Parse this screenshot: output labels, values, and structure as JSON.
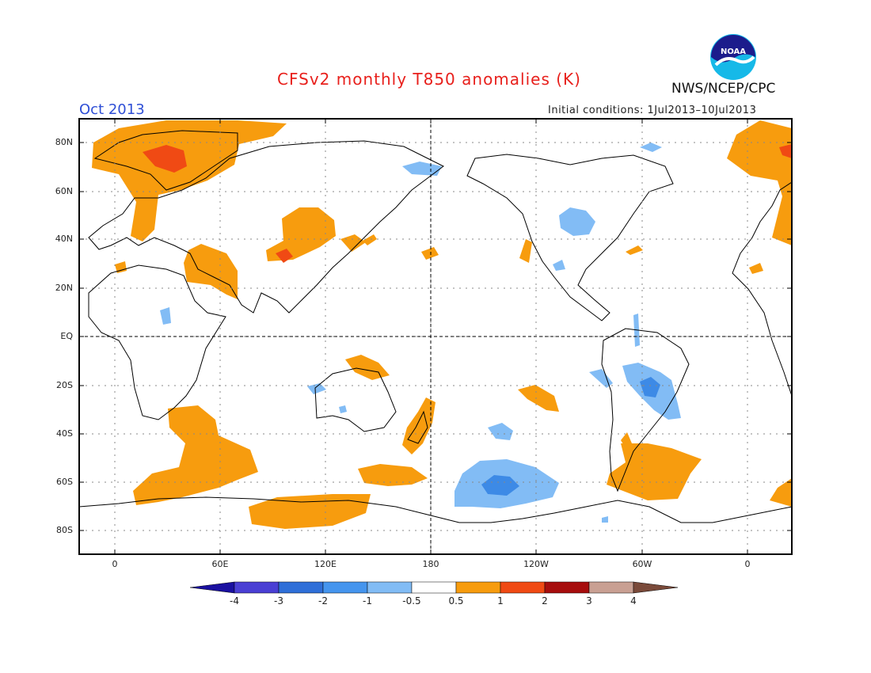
{
  "title": "CFSv2 monthly T850 anomalies (K)",
  "period": "Oct 2013",
  "initial_conditions": "Initial conditions: 1Jul2013–10Jul2013",
  "agency": "NWS/NCEP/CPC",
  "logo_text": "NOAA",
  "map": {
    "lat_ticks": [
      "80N",
      "60N",
      "40N",
      "20N",
      "EQ",
      "20S",
      "40S",
      "60S",
      "80S"
    ],
    "lon_ticks": [
      "0",
      "60E",
      "120E",
      "180",
      "120W",
      "60W",
      "0"
    ],
    "colors": {
      "land_outline": "#000000",
      "warm": "#f79c0e",
      "warm_strong": "#f04a14",
      "cool": "#82bcf5",
      "cool_strong": "#3d8ae6"
    }
  },
  "colorbar": {
    "labels": [
      "-4",
      "-3",
      "-2",
      "-1",
      "-0.5",
      "0.5",
      "1",
      "2",
      "3",
      "4"
    ],
    "colors": [
      "#1a10a0",
      "#4a3fd4",
      "#2f6fd8",
      "#4595ee",
      "#82bcf5",
      "#ffffff",
      "#f79c0e",
      "#f04a14",
      "#a70d0d",
      "#c9a093",
      "#7a4a3a"
    ]
  }
}
